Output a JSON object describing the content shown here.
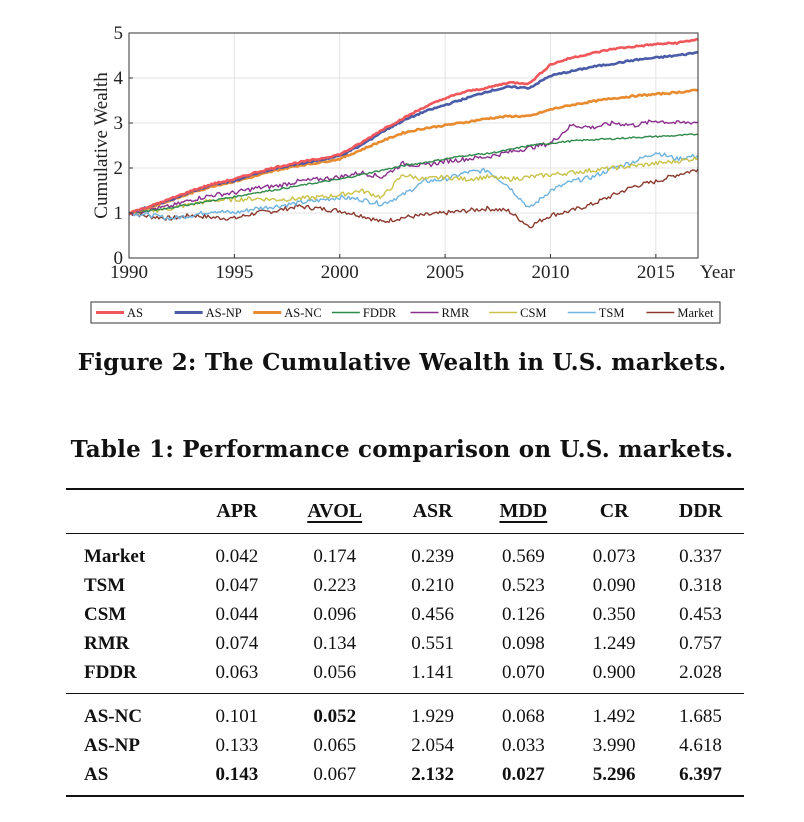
{
  "chart_data": {
    "type": "line",
    "title": "",
    "xlabel": "Year",
    "ylabel": "Cumulative Wealth",
    "xlim": [
      1990,
      2017
    ],
    "ylim": [
      0,
      5
    ],
    "x_ticks": [
      "1990",
      "1995",
      "2000",
      "2005",
      "2010",
      "2015"
    ],
    "y_ticks": [
      "0",
      "1",
      "2",
      "3",
      "4",
      "5"
    ],
    "grid": true,
    "legend_position": "bottom",
    "series": [
      {
        "name": "AS",
        "color": "#f0575a",
        "x": [
          1990,
          1991,
          1992,
          1993,
          1994,
          1995,
          1996,
          1997,
          1998,
          1999,
          2000,
          2001,
          2002,
          2003,
          2004,
          2005,
          2006,
          2007,
          2008,
          2009,
          2010,
          2011,
          2012,
          2013,
          2014,
          2015,
          2016,
          2017
        ],
        "values": [
          1.0,
          1.15,
          1.32,
          1.5,
          1.65,
          1.75,
          1.9,
          2.02,
          2.12,
          2.2,
          2.3,
          2.55,
          2.85,
          3.1,
          3.35,
          3.55,
          3.7,
          3.78,
          3.9,
          3.88,
          4.3,
          4.45,
          4.55,
          4.65,
          4.7,
          4.75,
          4.78,
          4.86
        ]
      },
      {
        "name": "AS-NP",
        "color": "#4a5ba8",
        "x": [
          1990,
          1991,
          1992,
          1993,
          1994,
          1995,
          1996,
          1997,
          1998,
          1999,
          2000,
          2001,
          2002,
          2003,
          2004,
          2005,
          2006,
          2007,
          2008,
          2009,
          2010,
          2011,
          2012,
          2013,
          2014,
          2015,
          2016,
          2017
        ],
        "values": [
          1.0,
          1.14,
          1.3,
          1.48,
          1.63,
          1.72,
          1.87,
          1.99,
          2.09,
          2.17,
          2.27,
          2.5,
          2.8,
          3.05,
          3.25,
          3.4,
          3.55,
          3.7,
          3.8,
          3.78,
          4.05,
          4.15,
          4.25,
          4.32,
          4.4,
          4.45,
          4.5,
          4.57
        ]
      },
      {
        "name": "AS-NC",
        "color": "#e88a2e",
        "x": [
          1990,
          1991,
          1992,
          1993,
          1994,
          1995,
          1996,
          1997,
          1998,
          1999,
          2000,
          2001,
          2002,
          2003,
          2004,
          2005,
          2006,
          2007,
          2008,
          2009,
          2010,
          2011,
          2012,
          2013,
          2014,
          2015,
          2016,
          2017
        ],
        "values": [
          1.0,
          1.13,
          1.28,
          1.45,
          1.6,
          1.7,
          1.82,
          1.95,
          2.05,
          2.12,
          2.2,
          2.4,
          2.6,
          2.78,
          2.88,
          2.95,
          3.02,
          3.1,
          3.15,
          3.15,
          3.3,
          3.4,
          3.48,
          3.55,
          3.6,
          3.64,
          3.68,
          3.73
        ]
      },
      {
        "name": "FDDR",
        "color": "#2e8a4a",
        "x": [
          1990,
          1991,
          1992,
          1993,
          1994,
          1995,
          1996,
          1997,
          1998,
          1999,
          2000,
          2001,
          2002,
          2003,
          2004,
          2005,
          2006,
          2007,
          2008,
          2009,
          2010,
          2011,
          2012,
          2013,
          2014,
          2015,
          2016,
          2017
        ],
        "values": [
          1.0,
          1.05,
          1.12,
          1.2,
          1.28,
          1.36,
          1.45,
          1.52,
          1.6,
          1.68,
          1.75,
          1.85,
          1.95,
          2.05,
          2.12,
          2.2,
          2.28,
          2.32,
          2.4,
          2.5,
          2.55,
          2.6,
          2.63,
          2.65,
          2.68,
          2.7,
          2.72,
          2.75
        ]
      },
      {
        "name": "RMR",
        "color": "#8a2f8e",
        "x": [
          1990,
          1991,
          1992,
          1993,
          1994,
          1995,
          1996,
          1997,
          1998,
          1999,
          2000,
          2001,
          2002,
          2003,
          2004,
          2005,
          2006,
          2007,
          2008,
          2009,
          2010,
          2011,
          2012,
          2013,
          2014,
          2015,
          2016,
          2017
        ],
        "values": [
          1.0,
          1.08,
          1.15,
          1.3,
          1.4,
          1.45,
          1.55,
          1.6,
          1.7,
          1.75,
          1.8,
          1.9,
          1.8,
          2.1,
          2.05,
          2.15,
          2.2,
          2.25,
          2.35,
          2.45,
          2.55,
          2.95,
          2.9,
          3.0,
          2.95,
          3.05,
          3.0,
          3.02
        ]
      },
      {
        "name": "CSM",
        "color": "#c9c24a",
        "x": [
          1990,
          1991,
          1992,
          1993,
          1994,
          1995,
          1996,
          1997,
          1998,
          1999,
          2000,
          2001,
          2002,
          2003,
          2004,
          2005,
          2006,
          2007,
          2008,
          2009,
          2010,
          2011,
          2012,
          2013,
          2014,
          2015,
          2016,
          2017
        ],
        "values": [
          1.0,
          1.05,
          1.1,
          1.2,
          1.28,
          1.3,
          1.32,
          1.3,
          1.32,
          1.35,
          1.4,
          1.5,
          1.35,
          1.85,
          1.75,
          1.8,
          1.75,
          1.8,
          1.75,
          1.8,
          1.85,
          1.9,
          1.95,
          2.0,
          2.05,
          2.1,
          2.15,
          2.22
        ]
      },
      {
        "name": "TSM",
        "color": "#6fb3e0",
        "x": [
          1990,
          1991,
          1992,
          1993,
          1994,
          1995,
          1996,
          1997,
          1998,
          1999,
          2000,
          2001,
          2002,
          2003,
          2004,
          2005,
          2006,
          2007,
          2008,
          2009,
          2010,
          2011,
          2012,
          2013,
          2014,
          2015,
          2016,
          2017
        ],
        "values": [
          1.0,
          0.95,
          0.88,
          0.95,
          1.05,
          1.0,
          1.1,
          1.15,
          1.22,
          1.28,
          1.35,
          1.3,
          1.2,
          1.4,
          1.7,
          1.75,
          1.9,
          1.95,
          1.6,
          1.1,
          1.5,
          1.7,
          1.8,
          2.0,
          2.15,
          2.35,
          2.2,
          2.28
        ]
      },
      {
        "name": "Market",
        "color": "#8b3a2e",
        "x": [
          1990,
          1991,
          1992,
          1993,
          1994,
          1995,
          1996,
          1997,
          1998,
          1999,
          2000,
          2001,
          2002,
          2003,
          2004,
          2005,
          2006,
          2007,
          2008,
          2009,
          2010,
          2011,
          2012,
          2013,
          2014,
          2015,
          2016,
          2017
        ],
        "values": [
          1.0,
          0.92,
          0.88,
          0.95,
          0.9,
          0.88,
          1.0,
          1.05,
          1.15,
          1.1,
          1.05,
          0.95,
          0.8,
          0.9,
          0.95,
          1.0,
          1.05,
          1.1,
          1.05,
          0.7,
          0.95,
          1.05,
          1.2,
          1.4,
          1.6,
          1.7,
          1.85,
          1.97
        ]
      }
    ]
  },
  "figure": {
    "caption": "Figure 2: The Cumulative Wealth in U.S. markets."
  },
  "table": {
    "caption": "Table 1: Performance comparison on U.S. markets.",
    "columns": [
      "",
      "APR",
      "AVOL",
      "ASR",
      "MDD",
      "CR",
      "DDR"
    ],
    "baselines": [
      {
        "label": "Market",
        "cells": [
          "0.042",
          "0.174",
          "0.239",
          "0.569",
          "0.073",
          "0.337"
        ]
      },
      {
        "label": "TSM",
        "cells": [
          "0.047",
          "0.223",
          "0.210",
          "0.523",
          "0.090",
          "0.318"
        ]
      },
      {
        "label": "CSM",
        "cells": [
          "0.044",
          "0.096",
          "0.456",
          "0.126",
          "0.350",
          "0.453"
        ]
      },
      {
        "label": "RMR",
        "cells": [
          "0.074",
          "0.134",
          "0.551",
          "0.098",
          "1.249",
          "0.757"
        ]
      },
      {
        "label": "FDDR",
        "cells": [
          "0.063",
          "0.056",
          "1.141",
          "0.070",
          "0.900",
          "2.028"
        ]
      }
    ],
    "ours": [
      {
        "label": "AS-NC",
        "cells": [
          "0.101",
          "0.052",
          "1.929",
          "0.068",
          "1.492",
          "1.685"
        ]
      },
      {
        "label": "AS-NP",
        "cells": [
          "0.133",
          "0.065",
          "2.054",
          "0.033",
          "3.990",
          "4.618"
        ]
      },
      {
        "label": "AS",
        "cells": [
          "0.143",
          "0.067",
          "2.132",
          "0.027",
          "5.296",
          "6.397"
        ]
      }
    ]
  }
}
